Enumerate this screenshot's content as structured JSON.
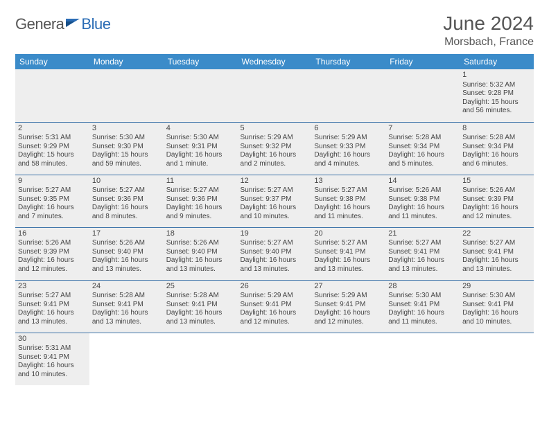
{
  "logo": {
    "part1": "Genera",
    "part2": "Blue"
  },
  "title": "June 2024",
  "location": "Morsbach, France",
  "weekday_color": "#3b8bc9",
  "row_border_color": "#3b72a8",
  "cell_bg": "#eeeeee",
  "weekdays": [
    "Sunday",
    "Monday",
    "Tuesday",
    "Wednesday",
    "Thursday",
    "Friday",
    "Saturday"
  ],
  "days": {
    "1": {
      "sunrise": "5:32 AM",
      "sunset": "9:28 PM",
      "daylight": "15 hours and 56 minutes."
    },
    "2": {
      "sunrise": "5:31 AM",
      "sunset": "9:29 PM",
      "daylight": "15 hours and 58 minutes."
    },
    "3": {
      "sunrise": "5:30 AM",
      "sunset": "9:30 PM",
      "daylight": "15 hours and 59 minutes."
    },
    "4": {
      "sunrise": "5:30 AM",
      "sunset": "9:31 PM",
      "daylight": "16 hours and 1 minute."
    },
    "5": {
      "sunrise": "5:29 AM",
      "sunset": "9:32 PM",
      "daylight": "16 hours and 2 minutes."
    },
    "6": {
      "sunrise": "5:29 AM",
      "sunset": "9:33 PM",
      "daylight": "16 hours and 4 minutes."
    },
    "7": {
      "sunrise": "5:28 AM",
      "sunset": "9:34 PM",
      "daylight": "16 hours and 5 minutes."
    },
    "8": {
      "sunrise": "5:28 AM",
      "sunset": "9:34 PM",
      "daylight": "16 hours and 6 minutes."
    },
    "9": {
      "sunrise": "5:27 AM",
      "sunset": "9:35 PM",
      "daylight": "16 hours and 7 minutes."
    },
    "10": {
      "sunrise": "5:27 AM",
      "sunset": "9:36 PM",
      "daylight": "16 hours and 8 minutes."
    },
    "11": {
      "sunrise": "5:27 AM",
      "sunset": "9:36 PM",
      "daylight": "16 hours and 9 minutes."
    },
    "12": {
      "sunrise": "5:27 AM",
      "sunset": "9:37 PM",
      "daylight": "16 hours and 10 minutes."
    },
    "13": {
      "sunrise": "5:27 AM",
      "sunset": "9:38 PM",
      "daylight": "16 hours and 11 minutes."
    },
    "14": {
      "sunrise": "5:26 AM",
      "sunset": "9:38 PM",
      "daylight": "16 hours and 11 minutes."
    },
    "15": {
      "sunrise": "5:26 AM",
      "sunset": "9:39 PM",
      "daylight": "16 hours and 12 minutes."
    },
    "16": {
      "sunrise": "5:26 AM",
      "sunset": "9:39 PM",
      "daylight": "16 hours and 12 minutes."
    },
    "17": {
      "sunrise": "5:26 AM",
      "sunset": "9:40 PM",
      "daylight": "16 hours and 13 minutes."
    },
    "18": {
      "sunrise": "5:26 AM",
      "sunset": "9:40 PM",
      "daylight": "16 hours and 13 minutes."
    },
    "19": {
      "sunrise": "5:27 AM",
      "sunset": "9:40 PM",
      "daylight": "16 hours and 13 minutes."
    },
    "20": {
      "sunrise": "5:27 AM",
      "sunset": "9:41 PM",
      "daylight": "16 hours and 13 minutes."
    },
    "21": {
      "sunrise": "5:27 AM",
      "sunset": "9:41 PM",
      "daylight": "16 hours and 13 minutes."
    },
    "22": {
      "sunrise": "5:27 AM",
      "sunset": "9:41 PM",
      "daylight": "16 hours and 13 minutes."
    },
    "23": {
      "sunrise": "5:27 AM",
      "sunset": "9:41 PM",
      "daylight": "16 hours and 13 minutes."
    },
    "24": {
      "sunrise": "5:28 AM",
      "sunset": "9:41 PM",
      "daylight": "16 hours and 13 minutes."
    },
    "25": {
      "sunrise": "5:28 AM",
      "sunset": "9:41 PM",
      "daylight": "16 hours and 13 minutes."
    },
    "26": {
      "sunrise": "5:29 AM",
      "sunset": "9:41 PM",
      "daylight": "16 hours and 12 minutes."
    },
    "27": {
      "sunrise": "5:29 AM",
      "sunset": "9:41 PM",
      "daylight": "16 hours and 12 minutes."
    },
    "28": {
      "sunrise": "5:30 AM",
      "sunset": "9:41 PM",
      "daylight": "16 hours and 11 minutes."
    },
    "29": {
      "sunrise": "5:30 AM",
      "sunset": "9:41 PM",
      "daylight": "16 hours and 10 minutes."
    },
    "30": {
      "sunrise": "5:31 AM",
      "sunset": "9:41 PM",
      "daylight": "16 hours and 10 minutes."
    }
  },
  "labels": {
    "sunrise": "Sunrise: ",
    "sunset": "Sunset: ",
    "daylight": "Daylight: "
  },
  "layout": [
    [
      null,
      null,
      null,
      null,
      null,
      null,
      "1"
    ],
    [
      "2",
      "3",
      "4",
      "5",
      "6",
      "7",
      "8"
    ],
    [
      "9",
      "10",
      "11",
      "12",
      "13",
      "14",
      "15"
    ],
    [
      "16",
      "17",
      "18",
      "19",
      "20",
      "21",
      "22"
    ],
    [
      "23",
      "24",
      "25",
      "26",
      "27",
      "28",
      "29"
    ],
    [
      "30",
      null,
      null,
      null,
      null,
      null,
      null
    ]
  ]
}
